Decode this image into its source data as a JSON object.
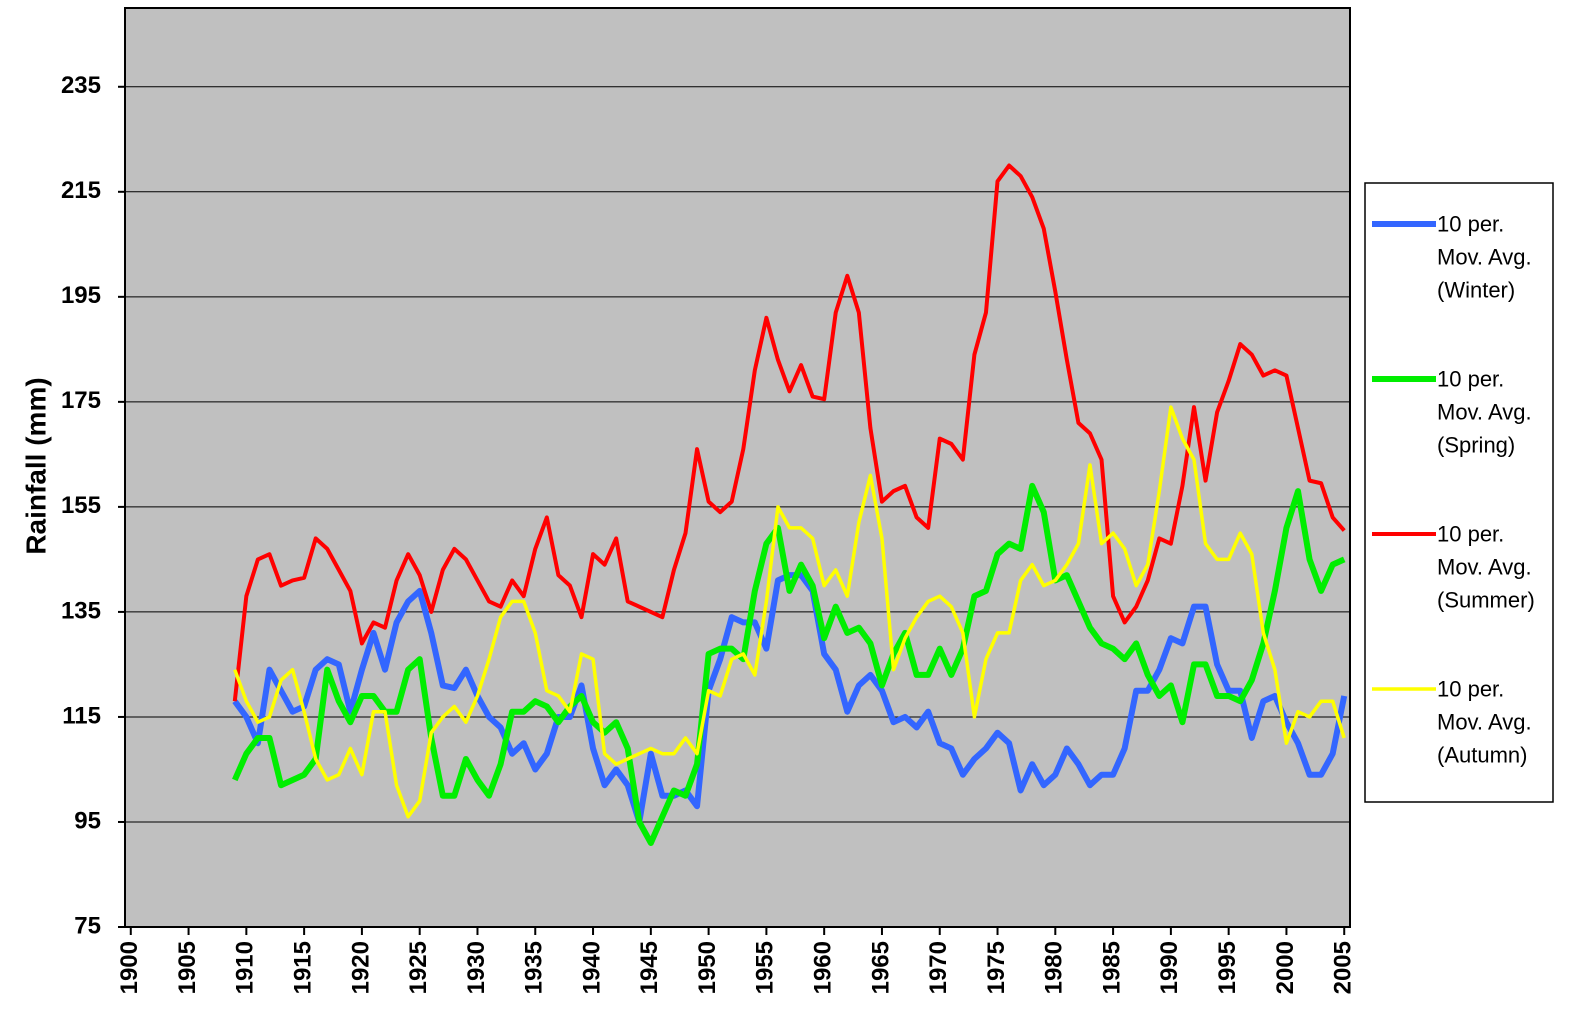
{
  "chart_data": {
    "type": "line",
    "y_label": "Rainfall (mm)",
    "xlim": [
      1899.5,
      2005.5
    ],
    "xticks": [
      1900,
      1905,
      1910,
      1915,
      1920,
      1925,
      1930,
      1935,
      1940,
      1945,
      1950,
      1955,
      1960,
      1965,
      1970,
      1975,
      1980,
      1985,
      1990,
      1995,
      2000,
      2005
    ],
    "ylim": [
      75,
      250
    ],
    "yticks": [
      75,
      95,
      115,
      135,
      155,
      175,
      195,
      215,
      235
    ],
    "grid": true,
    "legend": "right",
    "x": [
      1909,
      1910,
      1911,
      1912,
      1913,
      1914,
      1915,
      1916,
      1917,
      1918,
      1919,
      1920,
      1921,
      1922,
      1923,
      1924,
      1925,
      1926,
      1927,
      1928,
      1929,
      1930,
      1931,
      1932,
      1933,
      1934,
      1935,
      1936,
      1937,
      1938,
      1939,
      1940,
      1941,
      1942,
      1943,
      1944,
      1945,
      1946,
      1947,
      1948,
      1949,
      1950,
      1951,
      1952,
      1953,
      1954,
      1955,
      1956,
      1957,
      1958,
      1959,
      1960,
      1961,
      1962,
      1963,
      1964,
      1965,
      1966,
      1967,
      1968,
      1969,
      1970,
      1971,
      1972,
      1973,
      1974,
      1975,
      1976,
      1977,
      1978,
      1979,
      1980,
      1981,
      1982,
      1983,
      1984,
      1985,
      1986,
      1987,
      1988,
      1989,
      1990,
      1991,
      1992,
      1993,
      1994,
      1995,
      1996,
      1997,
      1998,
      1999,
      2000,
      2001,
      2002,
      2003,
      2004,
      2005
    ],
    "series": [
      {
        "name": "10 per. Mov. Avg. (Winter)",
        "color": "#3366ff",
        "values": [
          118,
          115,
          110,
          124,
          120,
          116,
          117,
          124,
          126,
          125,
          116,
          124,
          131,
          124,
          133,
          137,
          139,
          131,
          121,
          120.5,
          124,
          119,
          115,
          113,
          108,
          110,
          105,
          108,
          115,
          115,
          121,
          109,
          102,
          105,
          102,
          95,
          108,
          100,
          100,
          101,
          98,
          120,
          126,
          134,
          133,
          133,
          128,
          141,
          142,
          142,
          139,
          127,
          124,
          116,
          121,
          123,
          120,
          114,
          115,
          113,
          116,
          110,
          109,
          104,
          107,
          109,
          112,
          110,
          101,
          106,
          102,
          104,
          109,
          106,
          102,
          104,
          104,
          109,
          120,
          120,
          124,
          130,
          129,
          136,
          136,
          125,
          120,
          120,
          111,
          118,
          119,
          114,
          110,
          104,
          104,
          108,
          119
        ]
      },
      {
        "name": "10 per. Mov. Avg. (Spring)",
        "color": "#00ee00",
        "values": [
          103,
          108,
          111,
          111,
          102,
          103,
          104,
          107,
          124,
          118,
          114,
          119,
          119,
          116,
          116,
          124,
          126,
          111,
          100,
          100,
          107,
          103,
          100,
          106,
          116,
          116,
          118,
          117,
          114,
          117,
          119,
          114,
          112,
          114,
          109,
          95,
          91,
          96,
          101,
          100,
          106,
          127,
          128,
          128,
          126,
          139,
          148,
          151,
          139,
          144,
          140,
          130,
          136,
          131,
          132,
          129,
          121,
          127,
          131,
          123,
          123,
          128,
          123,
          128,
          138,
          139,
          146,
          148,
          147,
          159,
          154,
          141,
          142,
          137,
          132,
          129,
          128,
          126,
          129,
          123,
          119,
          121,
          114,
          125,
          125,
          119,
          119,
          118,
          122,
          129,
          139,
          151,
          158,
          145,
          139,
          144,
          145
        ]
      },
      {
        "name": "10 per. Mov. Avg. (Summer)",
        "color": "#ff0000",
        "values": [
          118,
          138,
          145,
          146,
          140,
          141,
          141.5,
          149,
          147,
          143,
          139,
          129,
          133,
          132,
          141,
          146,
          142,
          135,
          143,
          147,
          145,
          141,
          137,
          136,
          141,
          138,
          147,
          153,
          142,
          140,
          134,
          146,
          144,
          149,
          137,
          136,
          135,
          134,
          143,
          150,
          166,
          156,
          154,
          156,
          166,
          181,
          191,
          183,
          177,
          182,
          176,
          175.5,
          192,
          199,
          192,
          170,
          156,
          158,
          159,
          153,
          151,
          168,
          167,
          164,
          184,
          192,
          217,
          220,
          218,
          214,
          208,
          196,
          183,
          171,
          169,
          164,
          138,
          133,
          136,
          141,
          149,
          148,
          159,
          174,
          160,
          173,
          179,
          186,
          184,
          180,
          181,
          180,
          170,
          160,
          159.5,
          153,
          150.5
        ]
      },
      {
        "name": "10 per. Mov. Avg. (Autumn)",
        "color": "#ffff00",
        "values": [
          124,
          118,
          114,
          115,
          122,
          124,
          116,
          107,
          103,
          104,
          109,
          104,
          116,
          116,
          102,
          96,
          99,
          112,
          115,
          117,
          114,
          119,
          126,
          134,
          137,
          137,
          131,
          120,
          119,
          116,
          127,
          126,
          108,
          106,
          107,
          108,
          109,
          108,
          108,
          111,
          108,
          120,
          119,
          126,
          127,
          123,
          137,
          155,
          151,
          151,
          149,
          140,
          143,
          138,
          152,
          161,
          149,
          124,
          130,
          134,
          137,
          138,
          136,
          131,
          115,
          126,
          131,
          131,
          141,
          144,
          140,
          141,
          144,
          148,
          163,
          148,
          150,
          147,
          140,
          144,
          158,
          174,
          168,
          164,
          148,
          145,
          145,
          150,
          146,
          131,
          124,
          110,
          116,
          115,
          118,
          118,
          111
        ]
      }
    ]
  }
}
